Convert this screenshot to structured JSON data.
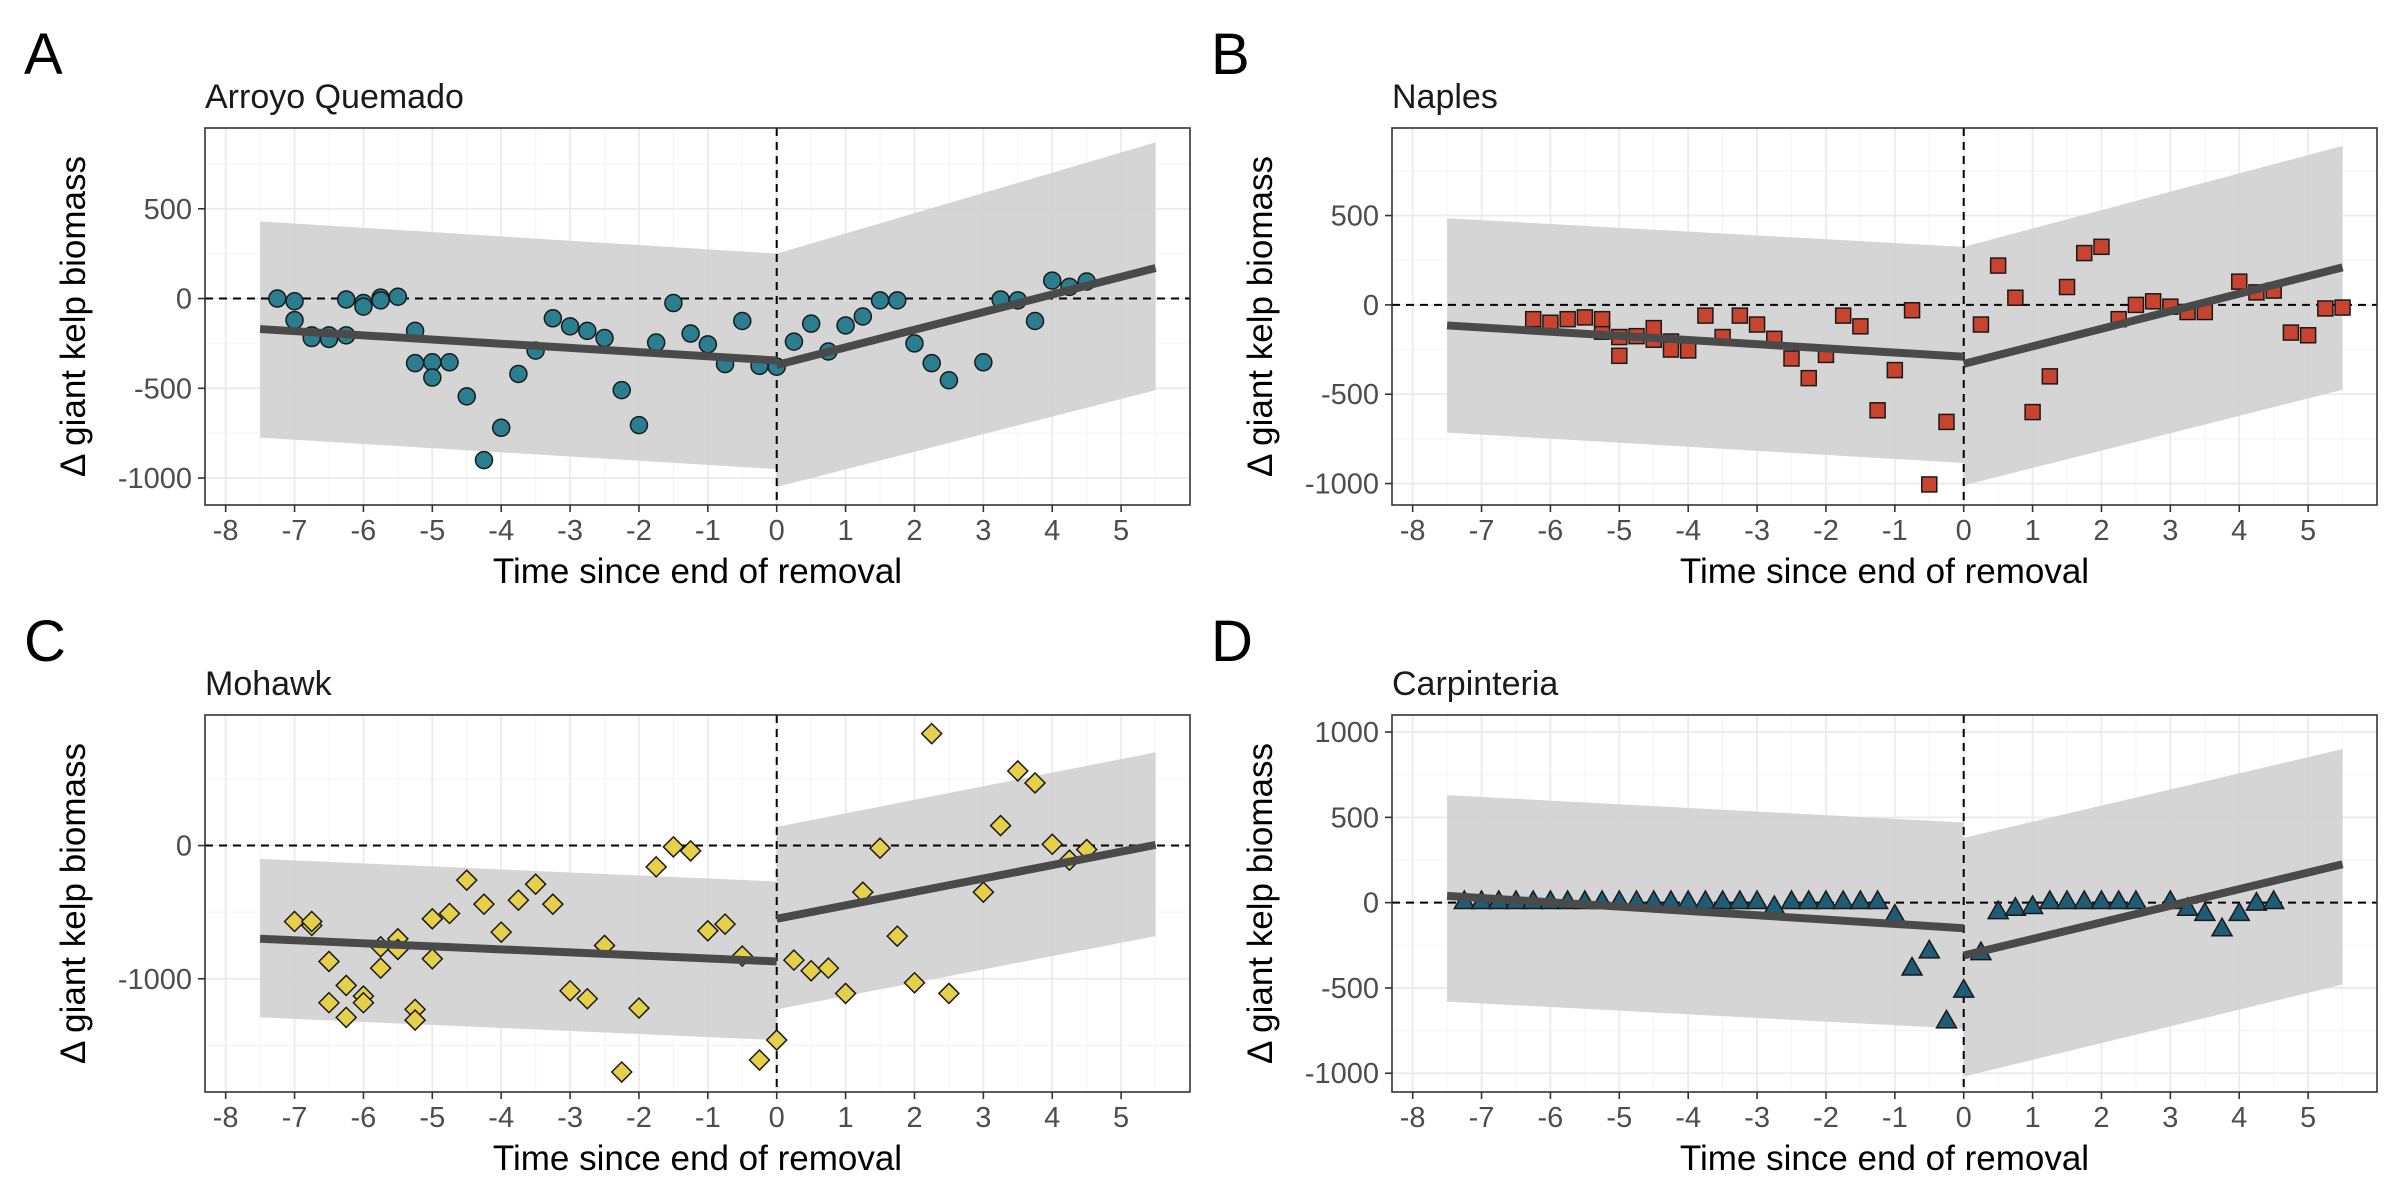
{
  "colors": {
    "band": "#d3d3d3",
    "fit_line": "#4a4a4a",
    "grid_major": "#ebebeb",
    "grid_minor": "#f5f5f5",
    "frame": "#333333",
    "marker_stroke": "#1a1a1a"
  },
  "chart_data": [
    {
      "type": "scatter",
      "letter": "A",
      "title": "Arroyo Quemado",
      "xlabel": "Time since end of removal",
      "ylabel": "Δ giant kelp biomass",
      "xlim": [
        -8.3,
        6.0
      ],
      "ylim": [
        -1150,
        950
      ],
      "xticks": [
        -8,
        -7,
        -6,
        -5,
        -4,
        -3,
        -2,
        -1,
        0,
        1,
        2,
        3,
        4,
        5
      ],
      "yticks": [
        -1000,
        -500,
        0,
        500
      ],
      "grid": true,
      "marker": "circle",
      "color": "#2b7e8f",
      "points": [
        [
          -7.25,
          0
        ],
        [
          -7.0,
          -15
        ],
        [
          -7.0,
          -120
        ],
        [
          -6.75,
          -205
        ],
        [
          -6.75,
          -220
        ],
        [
          -6.5,
          -205
        ],
        [
          -6.5,
          -225
        ],
        [
          -6.25,
          -5
        ],
        [
          -6.25,
          -205
        ],
        [
          -6.0,
          -25
        ],
        [
          -6.0,
          -45
        ],
        [
          -5.75,
          5
        ],
        [
          -5.75,
          -10
        ],
        [
          -5.5,
          10
        ],
        [
          -5.25,
          -180
        ],
        [
          -5.25,
          -360
        ],
        [
          -5.0,
          -355
        ],
        [
          -5.0,
          -440
        ],
        [
          -4.75,
          -355
        ],
        [
          -4.5,
          -545
        ],
        [
          -4.25,
          -900
        ],
        [
          -4.0,
          -720
        ],
        [
          -3.75,
          -420
        ],
        [
          -3.5,
          -290
        ],
        [
          -3.25,
          -110
        ],
        [
          -3.0,
          -155
        ],
        [
          -2.75,
          -180
        ],
        [
          -2.5,
          -220
        ],
        [
          -2.25,
          -510
        ],
        [
          -2.0,
          -705
        ],
        [
          -1.75,
          -245
        ],
        [
          -1.5,
          -25
        ],
        [
          -1.25,
          -195
        ],
        [
          -1.0,
          -255
        ],
        [
          -0.75,
          -365
        ],
        [
          -0.5,
          -125
        ],
        [
          -0.25,
          -375
        ],
        [
          0.0,
          -380
        ],
        [
          0.25,
          -240
        ],
        [
          0.5,
          -140
        ],
        [
          0.75,
          -295
        ],
        [
          1.0,
          -150
        ],
        [
          1.25,
          -100
        ],
        [
          1.5,
          -10
        ],
        [
          1.75,
          -10
        ],
        [
          2.0,
          -250
        ],
        [
          2.25,
          -360
        ],
        [
          2.5,
          -455
        ],
        [
          3.0,
          -355
        ],
        [
          3.25,
          -5
        ],
        [
          3.5,
          -10
        ],
        [
          3.75,
          -125
        ],
        [
          4.0,
          100
        ],
        [
          4.25,
          65
        ],
        [
          4.5,
          95
        ]
      ],
      "fits": [
        {
          "x": [
            -7.5,
            0
          ],
          "y": [
            -170,
            -345
          ]
        },
        {
          "x": [
            0,
            5.5
          ],
          "y": [
            -370,
            170
          ]
        }
      ],
      "bands": [
        {
          "x": [
            -7.5,
            0
          ],
          "upper": [
            430,
            250
          ],
          "lower": [
            -775,
            -950
          ]
        },
        {
          "x": [
            0,
            5.5
          ],
          "upper": [
            250,
            870
          ],
          "lower": [
            -1050,
            -510
          ]
        }
      ]
    },
    {
      "type": "scatter",
      "letter": "B",
      "title": "Naples",
      "xlabel": "Time since end of removal",
      "ylabel": "Δ giant kelp biomass",
      "xlim": [
        -8.3,
        6.0
      ],
      "ylim": [
        -1120,
        990
      ],
      "xticks": [
        -8,
        -7,
        -6,
        -5,
        -4,
        -3,
        -2,
        -1,
        0,
        1,
        2,
        3,
        4,
        5
      ],
      "yticks": [
        -1000,
        -500,
        0,
        500
      ],
      "grid": true,
      "marker": "square",
      "color": "#c8442e",
      "points": [
        [
          -6.25,
          -80
        ],
        [
          -6.0,
          -100
        ],
        [
          -5.75,
          -80
        ],
        [
          -5.5,
          -70
        ],
        [
          -5.25,
          -150
        ],
        [
          -5.25,
          -80
        ],
        [
          -5.0,
          -180
        ],
        [
          -5.0,
          -285
        ],
        [
          -4.75,
          -175
        ],
        [
          -4.5,
          -195
        ],
        [
          -4.5,
          -130
        ],
        [
          -4.25,
          -205
        ],
        [
          -4.25,
          -250
        ],
        [
          -4.0,
          -255
        ],
        [
          -3.75,
          -60
        ],
        [
          -3.5,
          -180
        ],
        [
          -3.25,
          -60
        ],
        [
          -3.0,
          -110
        ],
        [
          -2.75,
          -190
        ],
        [
          -2.5,
          -300
        ],
        [
          -2.25,
          -410
        ],
        [
          -2.0,
          -280
        ],
        [
          -1.75,
          -60
        ],
        [
          -1.5,
          -120
        ],
        [
          -1.25,
          -590
        ],
        [
          -1.0,
          -365
        ],
        [
          -0.75,
          -30
        ],
        [
          -0.5,
          -1005
        ],
        [
          -0.25,
          -655
        ],
        [
          0.25,
          -110
        ],
        [
          0.5,
          220
        ],
        [
          0.75,
          40
        ],
        [
          1.0,
          -600
        ],
        [
          1.25,
          -400
        ],
        [
          1.5,
          100
        ],
        [
          1.75,
          290
        ],
        [
          2.0,
          325
        ],
        [
          2.25,
          -80
        ],
        [
          2.5,
          0
        ],
        [
          2.75,
          20
        ],
        [
          3.0,
          -10
        ],
        [
          3.25,
          -40
        ],
        [
          3.5,
          -40
        ],
        [
          4.0,
          130
        ],
        [
          4.25,
          70
        ],
        [
          4.5,
          80
        ],
        [
          4.75,
          -155
        ],
        [
          5.0,
          -170
        ],
        [
          5.25,
          -20
        ],
        [
          5.5,
          -15
        ]
      ],
      "fits": [
        {
          "x": [
            -7.5,
            0
          ],
          "y": [
            -115,
            -290
          ]
        },
        {
          "x": [
            0,
            5.5
          ],
          "y": [
            -330,
            210
          ]
        }
      ],
      "bands": [
        {
          "x": [
            -7.5,
            0
          ],
          "upper": [
            485,
            325
          ],
          "lower": [
            -715,
            -885
          ]
        },
        {
          "x": [
            0,
            5.5
          ],
          "upper": [
            325,
            890
          ],
          "lower": [
            -1010,
            -475
          ]
        }
      ]
    },
    {
      "type": "scatter",
      "letter": "C",
      "title": "Mohawk",
      "xlabel": "Time since end of removal",
      "ylabel": "Δ giant kelp biomass",
      "xlim": [
        -8.3,
        6.0
      ],
      "ylim": [
        -1850,
        980
      ],
      "xticks": [
        -8,
        -7,
        -6,
        -5,
        -4,
        -3,
        -2,
        -1,
        0,
        1,
        2,
        3,
        4,
        5
      ],
      "yticks": [
        -1000,
        0
      ],
      "grid": true,
      "marker": "diamond",
      "color": "#e6cf4a",
      "points": [
        [
          -7.0,
          -570
        ],
        [
          -6.75,
          -600
        ],
        [
          -6.75,
          -570
        ],
        [
          -6.5,
          -870
        ],
        [
          -6.5,
          -1180
        ],
        [
          -6.25,
          -1050
        ],
        [
          -6.25,
          -1290
        ],
        [
          -6.0,
          -1130
        ],
        [
          -6.0,
          -1180
        ],
        [
          -5.75,
          -920
        ],
        [
          -5.75,
          -760
        ],
        [
          -5.5,
          -700
        ],
        [
          -5.5,
          -780
        ],
        [
          -5.25,
          -1230
        ],
        [
          -5.25,
          -1310
        ],
        [
          -5.0,
          -550
        ],
        [
          -5.0,
          -850
        ],
        [
          -4.75,
          -510
        ],
        [
          -4.5,
          -260
        ],
        [
          -4.25,
          -440
        ],
        [
          -4.0,
          -650
        ],
        [
          -3.75,
          -410
        ],
        [
          -3.5,
          -290
        ],
        [
          -3.25,
          -440
        ],
        [
          -3.0,
          -1090
        ],
        [
          -2.75,
          -1150
        ],
        [
          -2.5,
          -750
        ],
        [
          -2.25,
          -1700
        ],
        [
          -2.0,
          -1220
        ],
        [
          -1.75,
          -160
        ],
        [
          -1.5,
          -10
        ],
        [
          -1.25,
          -40
        ],
        [
          -1.0,
          -640
        ],
        [
          -0.75,
          -590
        ],
        [
          -0.5,
          -830
        ],
        [
          -0.25,
          -1610
        ],
        [
          0.0,
          -1460
        ],
        [
          0.25,
          -860
        ],
        [
          0.5,
          -940
        ],
        [
          0.75,
          -920
        ],
        [
          1.0,
          -1110
        ],
        [
          1.25,
          -350
        ],
        [
          1.5,
          -20
        ],
        [
          1.75,
          -680
        ],
        [
          2.0,
          -1030
        ],
        [
          2.25,
          840
        ],
        [
          2.5,
          -1110
        ],
        [
          3.0,
          -350
        ],
        [
          3.25,
          150
        ],
        [
          3.5,
          560
        ],
        [
          3.75,
          470
        ],
        [
          4.0,
          10
        ],
        [
          4.25,
          -110
        ],
        [
          4.5,
          -30
        ]
      ],
      "fits": [
        {
          "x": [
            -7.5,
            0
          ],
          "y": [
            -700,
            -870
          ]
        },
        {
          "x": [
            0,
            5.5
          ],
          "y": [
            -550,
            5
          ]
        }
      ],
      "bands": [
        {
          "x": [
            -7.5,
            0
          ],
          "upper": [
            -100,
            -270
          ],
          "lower": [
            -1290,
            -1460
          ]
        },
        {
          "x": [
            0,
            5.5
          ],
          "upper": [
            140,
            700
          ],
          "lower": [
            -1230,
            -680
          ]
        }
      ]
    },
    {
      "type": "scatter",
      "letter": "D",
      "title": "Carpinteria",
      "xlabel": "Time since end of removal",
      "ylabel": "Δ giant kelp biomass",
      "xlim": [
        -8.3,
        6.0
      ],
      "ylim": [
        -1110,
        1100
      ],
      "xticks": [
        -8,
        -7,
        -6,
        -5,
        -4,
        -3,
        -2,
        -1,
        0,
        1,
        2,
        3,
        4,
        5
      ],
      "yticks": [
        -1000,
        -500,
        0,
        500,
        1000
      ],
      "grid": true,
      "marker": "triangle",
      "color": "#1f5c78",
      "points": [
        [
          -7.25,
          10
        ],
        [
          -7.0,
          10
        ],
        [
          -6.75,
          10
        ],
        [
          -6.5,
          10
        ],
        [
          -6.25,
          10
        ],
        [
          -6.0,
          10
        ],
        [
          -5.75,
          10
        ],
        [
          -5.5,
          10
        ],
        [
          -5.25,
          10
        ],
        [
          -5.0,
          10
        ],
        [
          -4.75,
          10
        ],
        [
          -4.5,
          10
        ],
        [
          -4.25,
          10
        ],
        [
          -4.0,
          10
        ],
        [
          -3.75,
          10
        ],
        [
          -3.5,
          10
        ],
        [
          -3.25,
          10
        ],
        [
          -3.0,
          10
        ],
        [
          -2.75,
          -20
        ],
        [
          -2.5,
          10
        ],
        [
          -2.25,
          10
        ],
        [
          -2.0,
          10
        ],
        [
          -1.75,
          10
        ],
        [
          -1.5,
          10
        ],
        [
          -1.25,
          10
        ],
        [
          -1.0,
          -70
        ],
        [
          -0.75,
          -380
        ],
        [
          -0.5,
          -280
        ],
        [
          -0.25,
          -690
        ],
        [
          0.0,
          -510
        ],
        [
          0.25,
          -290
        ],
        [
          0.5,
          -50
        ],
        [
          0.75,
          -30
        ],
        [
          1.0,
          -20
        ],
        [
          1.25,
          10
        ],
        [
          1.5,
          10
        ],
        [
          1.75,
          10
        ],
        [
          2.0,
          10
        ],
        [
          2.25,
          10
        ],
        [
          2.5,
          10
        ],
        [
          3.0,
          10
        ],
        [
          3.25,
          -30
        ],
        [
          3.5,
          -60
        ],
        [
          3.75,
          -150
        ],
        [
          4.0,
          -60
        ],
        [
          4.25,
          0
        ],
        [
          4.5,
          10
        ]
      ],
      "fits": [
        {
          "x": [
            -7.5,
            0
          ],
          "y": [
            40,
            -150
          ]
        },
        {
          "x": [
            0,
            5.5
          ],
          "y": [
            -310,
            225
          ]
        }
      ],
      "bands": [
        {
          "x": [
            -7.5,
            0
          ],
          "upper": [
            630,
            470
          ],
          "lower": [
            -580,
            -740
          ]
        },
        {
          "x": [
            0,
            5.5
          ],
          "upper": [
            380,
            900
          ],
          "lower": [
            -1020,
            -480
          ]
        }
      ]
    }
  ]
}
